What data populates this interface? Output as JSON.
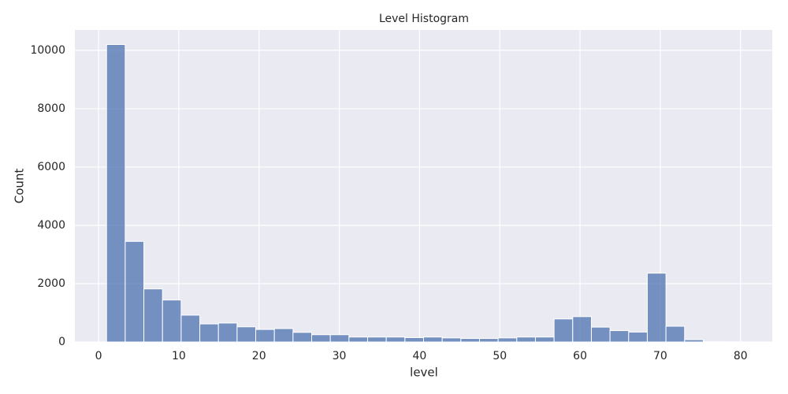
{
  "chart_data": {
    "type": "histogram",
    "title": "Level Histogram",
    "x_label": "level",
    "y_label": "Count",
    "bins": [
      1,
      3.3235,
      5.6471,
      7.9706,
      10.2941,
      12.6176,
      14.9412,
      17.2647,
      19.5882,
      21.9118,
      24.2353,
      26.5588,
      28.8824,
      31.2059,
      33.5294,
      35.8529,
      38.1765,
      40.5,
      42.8235,
      45.1471,
      47.4706,
      49.7941,
      52.1176,
      54.4412,
      56.7647,
      59.0882,
      61.4118,
      63.7353,
      66.0588,
      68.3824,
      70.7059,
      73.0294,
      75.3529,
      77.6765,
      80
    ],
    "counts": [
      10200,
      3450,
      1820,
      1440,
      920,
      620,
      650,
      520,
      430,
      460,
      330,
      250,
      250,
      170,
      170,
      170,
      150,
      170,
      140,
      120,
      120,
      140,
      170,
      170,
      790,
      870,
      510,
      390,
      340,
      2360,
      540,
      80,
      10,
      5
    ],
    "color": "#4c72b0",
    "xlim": [
      -2.95,
      83.95
    ],
    "xticks": [
      0,
      10,
      20,
      30,
      40,
      50,
      60,
      70,
      80
    ],
    "ylim": [
      0,
      10700
    ],
    "yticks": [
      0,
      2000,
      4000,
      6000,
      8000,
      10000
    ],
    "grid": true
  }
}
